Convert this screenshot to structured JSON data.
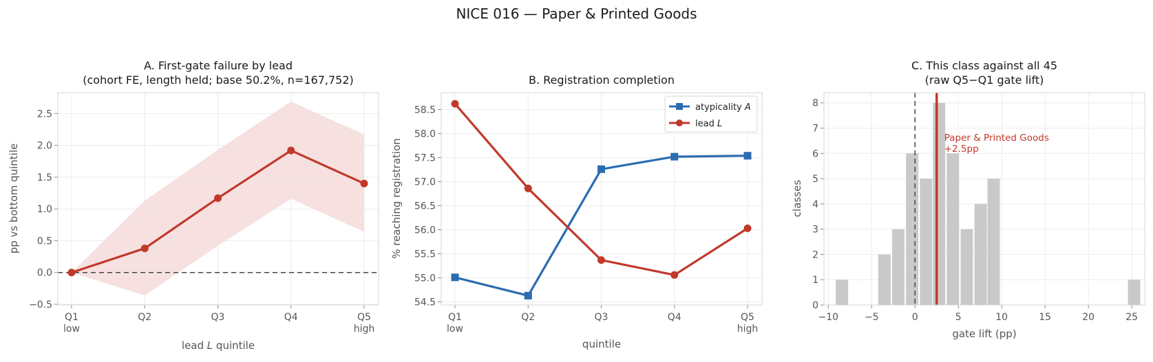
{
  "figure": {
    "title": "NICE 016 — Paper & Printed Goods"
  },
  "colors": {
    "red": "#c0392b",
    "blue": "#2b6cb0",
    "band": "#f5dcda",
    "grey_bar": "#c9c9c9",
    "zero_line": "#444444"
  },
  "chart_data": [
    {
      "type": "line",
      "id": "A",
      "title_line1": "A. First-gate failure by lead",
      "title_line2": "(cohort FE, length held; base 50.2%, n=167,752)",
      "xlabel": "lead L quintile",
      "xlabel_prefix": "lead ",
      "xlabel_var": "L",
      "xlabel_suffix": " quintile",
      "ylabel": "pp vs bottom quintile",
      "categories": [
        "Q1",
        "Q2",
        "Q3",
        "Q4",
        "Q5"
      ],
      "category_sublabels": [
        "low",
        "",
        "",
        "",
        "high"
      ],
      "ylim": [
        -0.5,
        2.85
      ],
      "yticks": [
        -0.5,
        0.0,
        0.5,
        1.0,
        1.5,
        2.0,
        2.5
      ],
      "ytick_labels": [
        "−0.5",
        "0.0",
        "0.5",
        "1.0",
        "1.5",
        "2.0",
        "2.5"
      ],
      "grid": true,
      "reference_line": 0,
      "series": [
        {
          "values": [
            0.0,
            0.38,
            1.17,
            1.92,
            1.4
          ],
          "ci_lower": [
            0.0,
            -0.36,
            0.42,
            1.16,
            0.64
          ],
          "ci_upper": [
            0.0,
            1.13,
            1.93,
            2.69,
            2.17
          ]
        }
      ]
    },
    {
      "type": "line",
      "id": "B",
      "title": "B. Registration completion",
      "xlabel": "quintile",
      "ylabel": "% reaching registration",
      "categories": [
        "Q1",
        "Q2",
        "Q3",
        "Q4",
        "Q5"
      ],
      "category_sublabels": [
        "low",
        "",
        "",
        "",
        "high"
      ],
      "ylim": [
        54.45,
        58.85
      ],
      "yticks": [
        54.5,
        55.0,
        55.5,
        56.0,
        56.5,
        57.0,
        57.5,
        58.0,
        58.5
      ],
      "ytick_labels": [
        "54.5",
        "55.0",
        "55.5",
        "56.0",
        "56.5",
        "57.0",
        "57.5",
        "58.0",
        "58.5"
      ],
      "grid": true,
      "legend_position": "top-right",
      "series": [
        {
          "name": "atypicality A",
          "name_prefix": "atypicality ",
          "name_var": "A",
          "marker": "square",
          "values": [
            55.01,
            54.63,
            57.26,
            57.52,
            57.54
          ]
        },
        {
          "name": "lead L",
          "name_prefix": "lead ",
          "name_var": "L",
          "marker": "circle",
          "values": [
            58.62,
            56.86,
            55.37,
            55.06,
            56.03
          ]
        }
      ]
    },
    {
      "type": "bar",
      "id": "C",
      "title_line1": "C. This class against all 45",
      "title_line2": "(raw Q5−Q1 gate lift)",
      "xlabel": "gate lift (pp)",
      "ylabel": "classes",
      "xlim": [
        -10.5,
        26.5
      ],
      "xticks": [
        -10,
        -5,
        0,
        5,
        10,
        15,
        20,
        25
      ],
      "xtick_labels": [
        "−10",
        "−5",
        "0",
        "5",
        "10",
        "15",
        "20",
        "25"
      ],
      "ylim": [
        0,
        8.4
      ],
      "yticks": [
        0,
        1,
        2,
        3,
        4,
        5,
        6,
        7,
        8
      ],
      "ytick_labels": [
        "0",
        "1",
        "2",
        "3",
        "4",
        "5",
        "6",
        "7",
        "8"
      ],
      "grid": true,
      "bin_width": 1.55,
      "bins": [
        {
          "x0": -9.2,
          "count": 1
        },
        {
          "x0": -4.3,
          "count": 2
        },
        {
          "x0": -2.7,
          "count": 3
        },
        {
          "x0": -1.1,
          "count": 6
        },
        {
          "x0": 0.5,
          "count": 5
        },
        {
          "x0": 2.0,
          "count": 8
        },
        {
          "x0": 3.6,
          "count": 6
        },
        {
          "x0": 5.2,
          "count": 3
        },
        {
          "x0": 6.8,
          "count": 4
        },
        {
          "x0": 8.3,
          "count": 5
        },
        {
          "x0": 24.5,
          "count": 1
        }
      ],
      "reference_line": 0,
      "highlight": {
        "value": 2.5,
        "label_line1": "Paper & Printed Goods",
        "label_line2": "+2.5pp"
      }
    }
  ]
}
